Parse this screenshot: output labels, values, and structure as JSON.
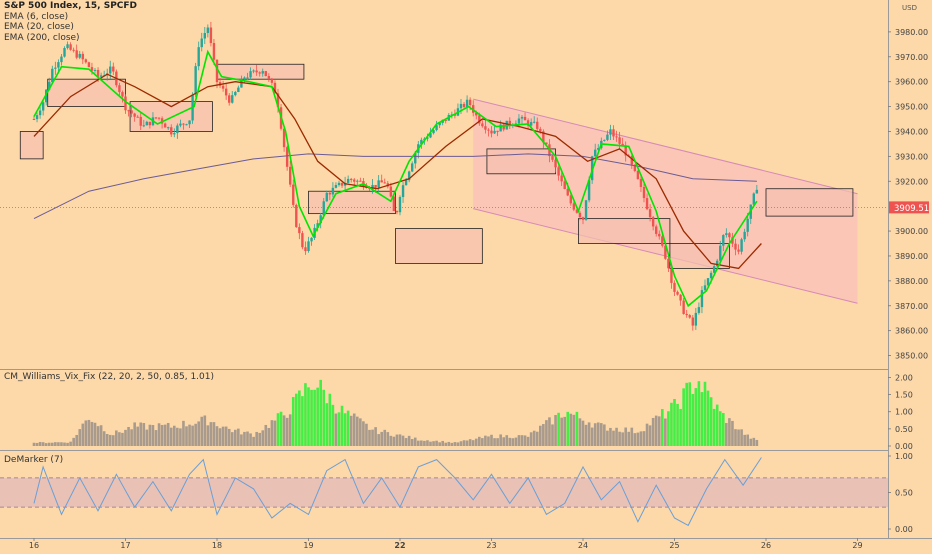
{
  "legend": {
    "symbol_line": "S&P 500 Index, 15, SPCFD",
    "ema_fast": "EMA (6, close)",
    "ema_mid": "EMA (20, close)",
    "ema_slow": "EMA (200, close)"
  },
  "indicators": {
    "vix_label": "CM_Williams_Vix_Fix (22, 20, 2, 50, 0.85, 1.01)",
    "demarker_label": "DeMarker (7)"
  },
  "price_axis": {
    "currency": "USD",
    "last_price_label": "3909.51",
    "tick_labels": [
      "3980.00",
      "3970.00",
      "3960.00",
      "3950.00",
      "3940.00",
      "3930.00",
      "3920.00",
      "3910.00",
      "3900.00",
      "3890.00",
      "3880.00",
      "3870.00",
      "3860.00",
      "3850.00"
    ]
  },
  "vix_axis": {
    "tick_labels": [
      "2.00",
      "1.50",
      "1.00",
      "0.50",
      "0.00"
    ]
  },
  "dem_axis": {
    "tick_labels": [
      "1.00",
      "0.50",
      "0.00"
    ]
  },
  "time_axis": {
    "tick_labels": [
      "16",
      "17",
      "18",
      "19",
      "22",
      "23",
      "24",
      "25",
      "26",
      "29"
    ]
  },
  "colors": {
    "background": "#fdd8a8",
    "candle_up": "#26a69a",
    "candle_down": "#ef5350",
    "ema_fast": "#00e600",
    "ema_mid": "#9c2a00",
    "ema_slow": "#6b5b95",
    "channel_fill": "#f9b8c0",
    "channel_line": "#d58ab8",
    "box_fill": "#f5c0b0",
    "vix_high": "#44ee44",
    "vix_normal": "#a89a8c",
    "demarker_line": "#6a9fd8",
    "demarker_band": "#d8b0c0",
    "last_price_tag": "#ef5350"
  },
  "chart_data": {
    "type": "candlestick",
    "title": "S&P 500 Index, 15, SPCFD",
    "ylim": [
      3845,
      3992
    ],
    "x_ticks": [
      "16",
      "17",
      "18",
      "19",
      "22",
      "23",
      "24",
      "25",
      "26",
      "29"
    ],
    "price_path": [
      [
        0,
        3945
      ],
      [
        0.1,
        3952
      ],
      [
        0.2,
        3965
      ],
      [
        0.35,
        3974
      ],
      [
        0.5,
        3970
      ],
      [
        0.7,
        3962
      ],
      [
        0.85,
        3965
      ],
      [
        1.0,
        3950
      ],
      [
        1.2,
        3942
      ],
      [
        1.35,
        3946
      ],
      [
        1.5,
        3940
      ],
      [
        1.7,
        3945
      ],
      [
        1.8,
        3975
      ],
      [
        1.9,
        3982
      ],
      [
        2.0,
        3960
      ],
      [
        2.15,
        3952
      ],
      [
        2.3,
        3962
      ],
      [
        2.5,
        3965
      ],
      [
        2.65,
        3955
      ],
      [
        2.75,
        3930
      ],
      [
        2.85,
        3905
      ],
      [
        2.95,
        3892
      ],
      [
        3.05,
        3898
      ],
      [
        3.2,
        3915
      ],
      [
        3.45,
        3921
      ],
      [
        3.7,
        3918
      ],
      [
        3.85,
        3920
      ],
      [
        3.95,
        3905
      ],
      [
        4.0,
        3915
      ],
      [
        4.2,
        3935
      ],
      [
        4.5,
        3945
      ],
      [
        4.75,
        3952
      ],
      [
        4.85,
        3945
      ],
      [
        5.0,
        3940
      ],
      [
        5.3,
        3945
      ],
      [
        5.5,
        3942
      ],
      [
        5.7,
        3925
      ],
      [
        5.85,
        3912
      ],
      [
        6.0,
        3905
      ],
      [
        6.1,
        3930
      ],
      [
        6.3,
        3940
      ],
      [
        6.45,
        3933
      ],
      [
        6.6,
        3920
      ],
      [
        6.75,
        3905
      ],
      [
        6.9,
        3890
      ],
      [
        7.0,
        3876
      ],
      [
        7.1,
        3868
      ],
      [
        7.2,
        3862
      ],
      [
        7.3,
        3875
      ],
      [
        7.45,
        3887
      ],
      [
        7.55,
        3900
      ],
      [
        7.7,
        3892
      ],
      [
        7.8,
        3905
      ],
      [
        7.9,
        3918
      ]
    ],
    "ema_fast": [
      [
        0,
        3946
      ],
      [
        0.3,
        3966
      ],
      [
        0.6,
        3965
      ],
      [
        1.0,
        3952
      ],
      [
        1.35,
        3943
      ],
      [
        1.75,
        3950
      ],
      [
        1.9,
        3972
      ],
      [
        2.05,
        3962
      ],
      [
        2.35,
        3960
      ],
      [
        2.6,
        3958
      ],
      [
        2.75,
        3940
      ],
      [
        2.9,
        3910
      ],
      [
        3.05,
        3898
      ],
      [
        3.3,
        3915
      ],
      [
        3.6,
        3919
      ],
      [
        3.9,
        3912
      ],
      [
        4.1,
        3928
      ],
      [
        4.4,
        3943
      ],
      [
        4.75,
        3950
      ],
      [
        5.05,
        3942
      ],
      [
        5.4,
        3943
      ],
      [
        5.7,
        3930
      ],
      [
        5.95,
        3908
      ],
      [
        6.2,
        3935
      ],
      [
        6.5,
        3934
      ],
      [
        6.8,
        3908
      ],
      [
        7.0,
        3882
      ],
      [
        7.15,
        3870
      ],
      [
        7.35,
        3876
      ],
      [
        7.6,
        3895
      ],
      [
        7.9,
        3912
      ]
    ],
    "ema_mid": [
      [
        0,
        3938
      ],
      [
        0.4,
        3954
      ],
      [
        0.8,
        3963
      ],
      [
        1.1,
        3958
      ],
      [
        1.5,
        3950
      ],
      [
        1.9,
        3958
      ],
      [
        2.2,
        3960
      ],
      [
        2.6,
        3958
      ],
      [
        2.85,
        3945
      ],
      [
        3.1,
        3928
      ],
      [
        3.4,
        3919
      ],
      [
        3.75,
        3917
      ],
      [
        4.1,
        3921
      ],
      [
        4.5,
        3934
      ],
      [
        4.9,
        3945
      ],
      [
        5.3,
        3942
      ],
      [
        5.7,
        3938
      ],
      [
        6.05,
        3928
      ],
      [
        6.4,
        3933
      ],
      [
        6.8,
        3921
      ],
      [
        7.1,
        3900
      ],
      [
        7.4,
        3887
      ],
      [
        7.7,
        3885
      ],
      [
        7.95,
        3895
      ]
    ],
    "ema_slow": [
      [
        0,
        3905
      ],
      [
        0.6,
        3916
      ],
      [
        1.2,
        3921
      ],
      [
        1.8,
        3925
      ],
      [
        2.4,
        3929
      ],
      [
        3.0,
        3931
      ],
      [
        3.6,
        3930
      ],
      [
        4.2,
        3930
      ],
      [
        4.8,
        3930
      ],
      [
        5.4,
        3931
      ],
      [
        6.0,
        3930
      ],
      [
        6.6,
        3926
      ],
      [
        7.2,
        3921
      ],
      [
        7.9,
        3920
      ]
    ],
    "channel": {
      "upper": [
        [
          4.8,
          3953
        ],
        [
          9.0,
          3915
        ]
      ],
      "lower": [
        [
          4.8,
          3909
        ],
        [
          9.0,
          3871
        ]
      ]
    },
    "boxes": [
      {
        "x0": -0.15,
        "x1": 0.1,
        "y0": 3940,
        "y1": 3929
      },
      {
        "x0": 0.15,
        "x1": 1.0,
        "y0": 3961,
        "y1": 3950
      },
      {
        "x0": 1.05,
        "x1": 1.95,
        "y0": 3952,
        "y1": 3940
      },
      {
        "x0": 2.0,
        "x1": 2.95,
        "y0": 3967,
        "y1": 3961
      },
      {
        "x0": 3.0,
        "x1": 3.95,
        "y0": 3916,
        "y1": 3907
      },
      {
        "x0": 3.95,
        "x1": 4.9,
        "y0": 3901,
        "y1": 3887
      },
      {
        "x0": 4.95,
        "x1": 5.7,
        "y0": 3933,
        "y1": 3923
      },
      {
        "x0": 5.95,
        "x1": 6.95,
        "y0": 3905,
        "y1": 3895
      },
      {
        "x0": 6.95,
        "x1": 7.6,
        "y0": 3895,
        "y1": 3885
      },
      {
        "x0": 8.0,
        "x1": 8.95,
        "y0": 3917,
        "y1": 3906
      }
    ],
    "last_price": 3909.51,
    "vix_fix_ylim": [
      0,
      2.1
    ],
    "vix_fix_path": [
      [
        0,
        0.1
      ],
      [
        0.4,
        0.12
      ],
      [
        0.6,
        0.9
      ],
      [
        0.85,
        0.35
      ],
      [
        1.1,
        0.6
      ],
      [
        1.5,
        0.6
      ],
      [
        1.9,
        0.8
      ],
      [
        2.15,
        0.5
      ],
      [
        2.4,
        0.35
      ],
      [
        2.75,
        1.0
      ],
      [
        3.05,
        2.0
      ],
      [
        3.35,
        1.1
      ],
      [
        3.7,
        0.5
      ],
      [
        4.2,
        0.2
      ],
      [
        4.6,
        0.1
      ],
      [
        5.0,
        0.3
      ],
      [
        5.4,
        0.3
      ],
      [
        5.8,
        1.05
      ],
      [
        6.2,
        0.6
      ],
      [
        6.6,
        0.45
      ],
      [
        7.0,
        1.2
      ],
      [
        7.25,
        2.05
      ],
      [
        7.5,
        1.0
      ],
      [
        7.8,
        0.3
      ],
      [
        7.95,
        0.1
      ]
    ],
    "demarker_ylim": [
      -0.05,
      1.05
    ],
    "demarker_band": [
      0.3,
      0.7
    ],
    "demarker_path": [
      [
        0,
        0.35
      ],
      [
        0.1,
        0.85
      ],
      [
        0.3,
        0.2
      ],
      [
        0.5,
        0.7
      ],
      [
        0.7,
        0.25
      ],
      [
        0.9,
        0.75
      ],
      [
        1.1,
        0.3
      ],
      [
        1.3,
        0.65
      ],
      [
        1.5,
        0.25
      ],
      [
        1.7,
        0.75
      ],
      [
        1.85,
        0.95
      ],
      [
        2.0,
        0.2
      ],
      [
        2.2,
        0.7
      ],
      [
        2.4,
        0.55
      ],
      [
        2.6,
        0.15
      ],
      [
        2.8,
        0.35
      ],
      [
        3.0,
        0.2
      ],
      [
        3.2,
        0.8
      ],
      [
        3.4,
        0.95
      ],
      [
        3.6,
        0.35
      ],
      [
        3.8,
        0.7
      ],
      [
        4.0,
        0.3
      ],
      [
        4.2,
        0.85
      ],
      [
        4.4,
        0.95
      ],
      [
        4.6,
        0.7
      ],
      [
        4.8,
        0.4
      ],
      [
        5.0,
        0.75
      ],
      [
        5.2,
        0.35
      ],
      [
        5.4,
        0.7
      ],
      [
        5.6,
        0.2
      ],
      [
        5.8,
        0.35
      ],
      [
        6.0,
        0.85
      ],
      [
        6.2,
        0.4
      ],
      [
        6.4,
        0.65
      ],
      [
        6.6,
        0.1
      ],
      [
        6.8,
        0.6
      ],
      [
        7.0,
        0.15
      ],
      [
        7.15,
        0.05
      ],
      [
        7.35,
        0.55
      ],
      [
        7.55,
        0.95
      ],
      [
        7.75,
        0.6
      ],
      [
        7.95,
        0.98
      ]
    ]
  }
}
